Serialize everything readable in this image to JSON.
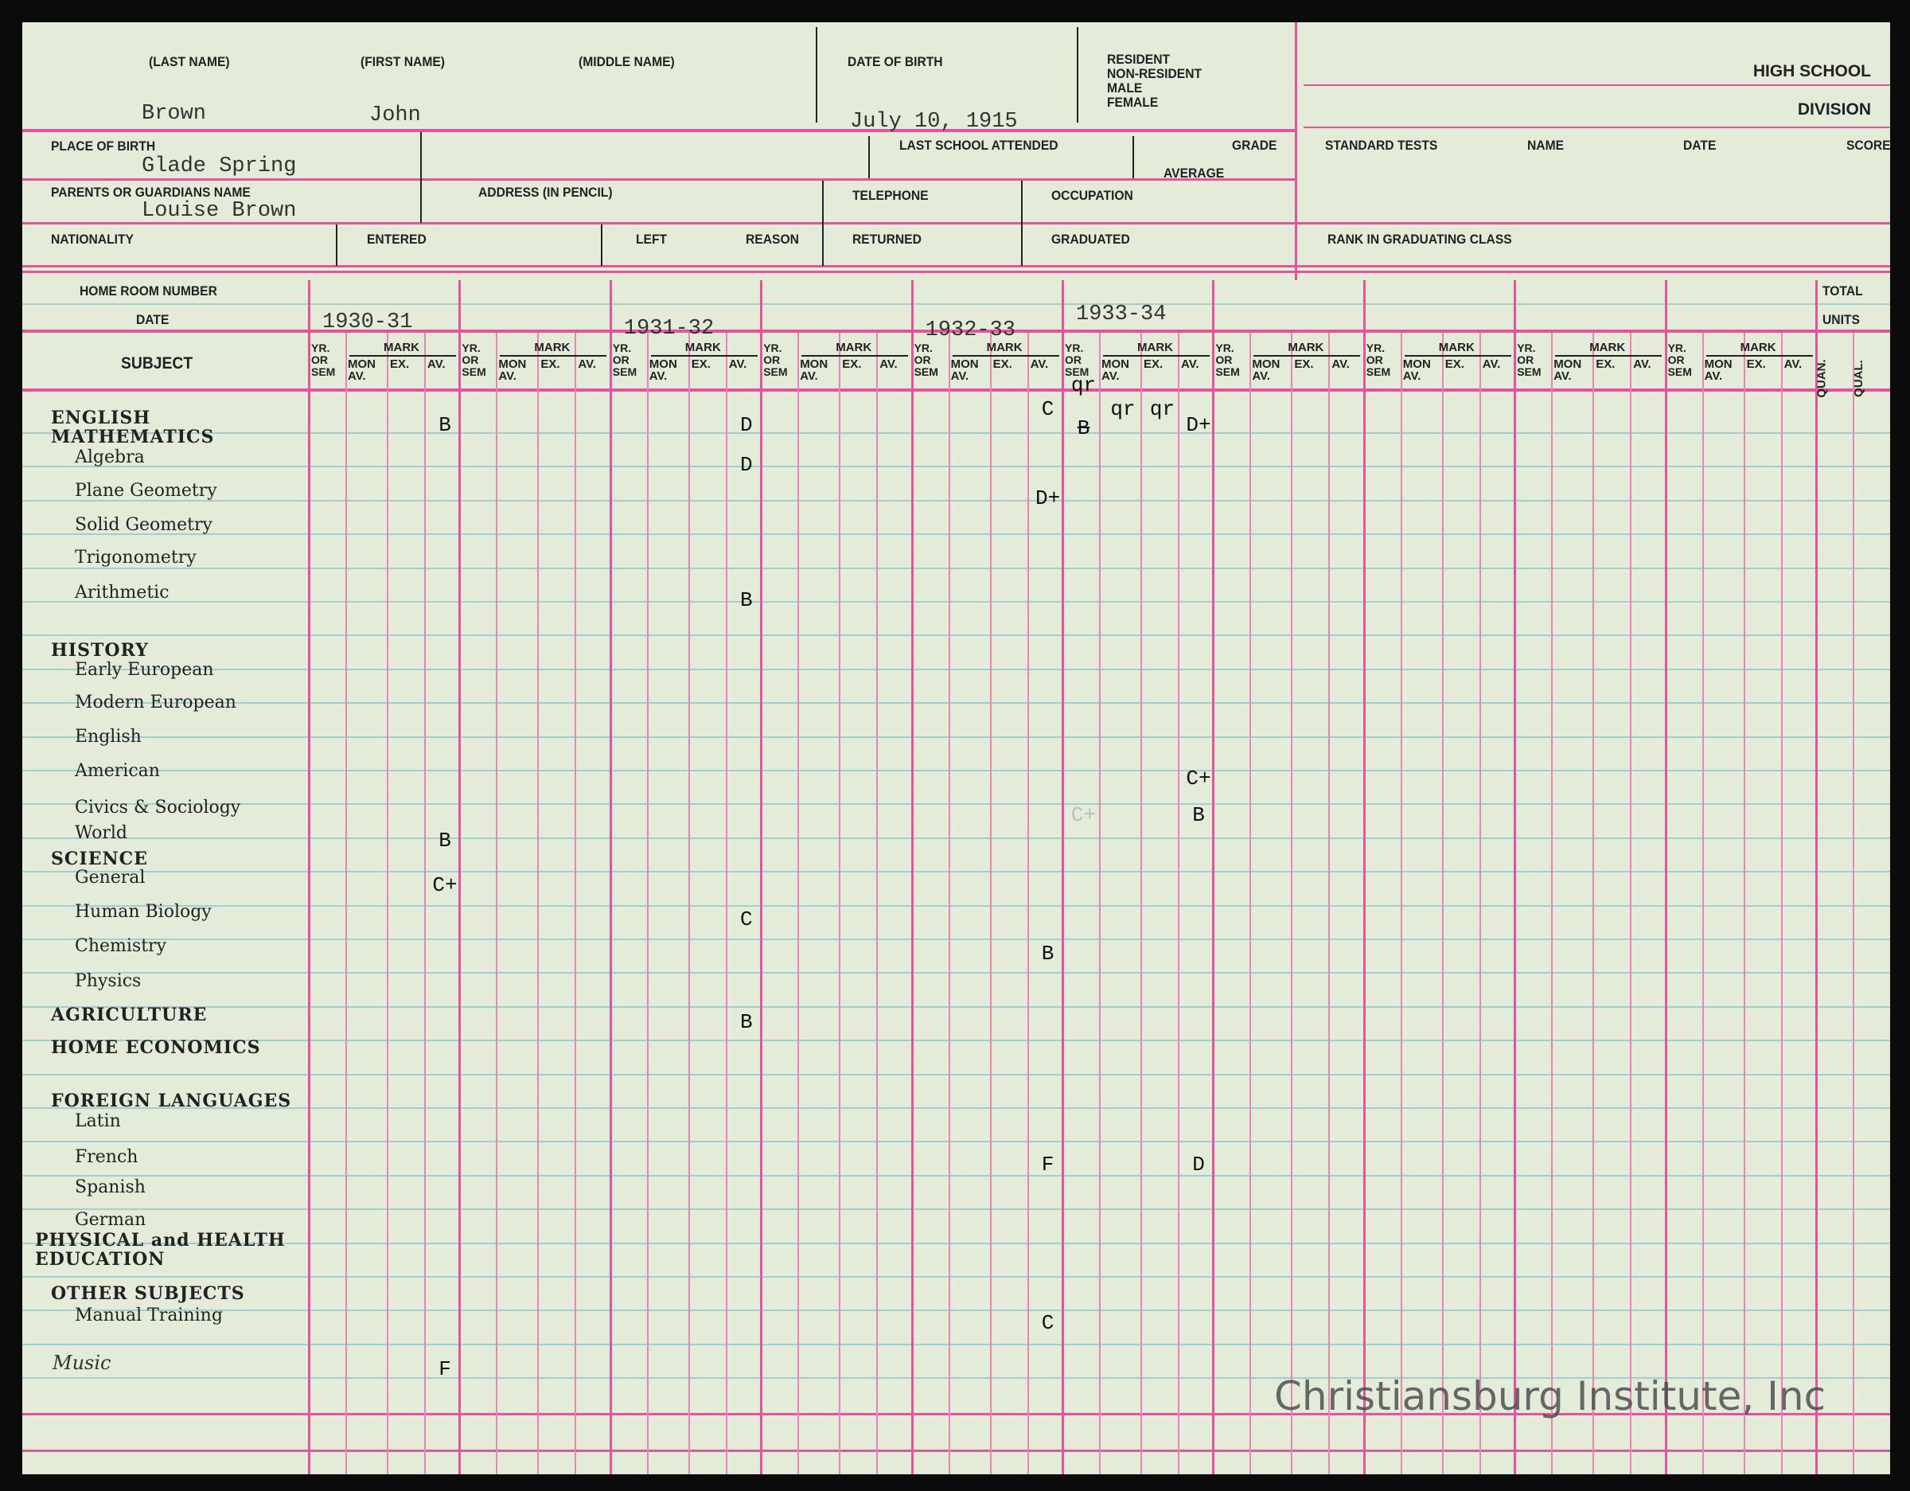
{
  "header": {
    "last_name_label": "(LAST NAME)",
    "first_name_label": "(FIRST NAME)",
    "middle_name_label": "(MIDDLE NAME)",
    "dob_label": "DATE OF BIRTH",
    "resident_options": [
      "RESIDENT",
      "NON-RESIDENT",
      "MALE",
      "FEMALE"
    ],
    "school_title": "HIGH SCHOOL",
    "division_label": "DIVISION",
    "last_name": "Brown",
    "first_name": "John",
    "date_of_birth": "July 10, 1915",
    "place_of_birth_label": "PLACE OF BIRTH",
    "place_of_birth": "Glade Spring",
    "last_school_label": "LAST SCHOOL ATTENDED",
    "grade_label": "GRADE",
    "average_label": "AVERAGE",
    "parents_label": "PARENTS OR GUARDIANS NAME",
    "parents": "Louise Brown",
    "address_label": "ADDRESS (IN PENCIL)",
    "telephone_label": "TELEPHONE",
    "occupation_label": "OCCUPATION",
    "nationality_label": "NATIONALITY",
    "entered_label": "ENTERED",
    "left_label": "LEFT",
    "reason_label": "REASON",
    "returned_label": "RETURNED",
    "graduated_label": "GRADUATED",
    "standard_tests_label": "STANDARD TESTS",
    "name_label": "NAME",
    "date_label": "DATE",
    "score_label": "SCORE",
    "rank_label": "RANK IN GRADUATING CLASS"
  },
  "grid": {
    "home_room_label": "HOME ROOM NUMBER",
    "date_label": "DATE",
    "subject_label": "SUBJECT",
    "total_label": "TOTAL",
    "units_label": "UNITS",
    "quan_label": "QUAN.",
    "qual_label": "QUAL.",
    "column_headers": {
      "yr": "YR. OR SEM",
      "mark": "MARK",
      "mon": "MON AV.",
      "ex": "EX.",
      "av": "AV."
    },
    "years": [
      "1930-31",
      "",
      "1931-32",
      "",
      "1932-33",
      "1933-34",
      "",
      "",
      "",
      ""
    ]
  },
  "subjects": [
    {
      "name": "ENGLISH",
      "category": true
    },
    {
      "name": "MATHEMATICS",
      "category": true
    },
    {
      "name": "Algebra"
    },
    {
      "name": "Plane Geometry"
    },
    {
      "name": "Solid Geometry"
    },
    {
      "name": "Trigonometry"
    },
    {
      "name": "Arithmetic"
    },
    {
      "name": "HISTORY",
      "category": true
    },
    {
      "name": "Early European"
    },
    {
      "name": "Modern European"
    },
    {
      "name": "English"
    },
    {
      "name": "American"
    },
    {
      "name": "Civics  & Sociology"
    },
    {
      "name": "World"
    },
    {
      "name": "SCIENCE",
      "category": true
    },
    {
      "name": "General"
    },
    {
      "name": "Human Biology"
    },
    {
      "name": "Chemistry"
    },
    {
      "name": "Physics"
    },
    {
      "name": "AGRICULTURE",
      "category": true
    },
    {
      "name": "HOME ECONOMICS",
      "category": true
    },
    {
      "name": "FOREIGN LANGUAGES",
      "category": true
    },
    {
      "name": "Latin"
    },
    {
      "name": "French"
    },
    {
      "name": "Spanish"
    },
    {
      "name": "German"
    },
    {
      "name": "PHYSICAL and HEALTH",
      "category": true
    },
    {
      "name": "EDUCATION",
      "category": true
    },
    {
      "name": "OTHER SUBJECTS",
      "category": true
    },
    {
      "name": "Manual Training"
    },
    {
      "name": "Music",
      "handwritten": true
    }
  ],
  "grades": [
    {
      "subject": "ENGLISH",
      "year": "1930-31",
      "column": "av",
      "mark": "B"
    },
    {
      "subject": "ENGLISH",
      "year": "1931-32",
      "column": "av",
      "mark": "D"
    },
    {
      "subject": "ENGLISH",
      "year": "1932-33",
      "column": "av",
      "mark": "C"
    },
    {
      "subject": "ENGLISH",
      "year": "1933-34",
      "column": "yr",
      "mark": "qr"
    },
    {
      "subject": "ENGLISH",
      "year": "1933-34",
      "column": "yr",
      "mark": "B",
      "struck": true
    },
    {
      "subject": "ENGLISH",
      "year": "1933-34",
      "column": "mon",
      "mark": "qr"
    },
    {
      "subject": "ENGLISH",
      "year": "1933-34",
      "column": "ex",
      "mark": "qr"
    },
    {
      "subject": "ENGLISH",
      "year": "1933-34",
      "column": "av",
      "mark": "D+"
    },
    {
      "subject": "Algebra",
      "year": "1931-32",
      "column": "av",
      "mark": "D"
    },
    {
      "subject": "Plane Geometry",
      "year": "1932-33",
      "column": "av",
      "mark": "D+"
    },
    {
      "subject": "Arithmetic",
      "year": "1931-32",
      "column": "av",
      "mark": "B"
    },
    {
      "subject": "American",
      "year": "1933-34",
      "column": "av",
      "mark": "C+"
    },
    {
      "subject": "Civics  & Sociology",
      "year": "1933-34",
      "column": "yr",
      "mark": "C+",
      "faint": true
    },
    {
      "subject": "Civics  & Sociology",
      "year": "1933-34",
      "column": "av",
      "mark": "B"
    },
    {
      "subject": "World",
      "year": "1930-31",
      "column": "av",
      "mark": "B"
    },
    {
      "subject": "General",
      "year": "1930-31",
      "column": "av",
      "mark": "C+"
    },
    {
      "subject": "Human Biology",
      "year": "1931-32",
      "column": "av",
      "mark": "C"
    },
    {
      "subject": "Chemistry",
      "year": "1932-33",
      "column": "av",
      "mark": "B"
    },
    {
      "subject": "AGRICULTURE",
      "year": "1931-32",
      "column": "av",
      "mark": "B"
    },
    {
      "subject": "French",
      "year": "1932-33",
      "column": "av",
      "mark": "F"
    },
    {
      "subject": "French",
      "year": "1933-34",
      "column": "av",
      "mark": "D"
    },
    {
      "subject": "Manual Training",
      "year": "1932-33",
      "column": "av",
      "mark": "C"
    },
    {
      "subject": "Music",
      "year": "1930-31",
      "column": "av",
      "mark": "F"
    }
  ],
  "watermark": "Christiansburg Institute, Inc",
  "colors": {
    "paper": "#e4ebd9",
    "rule_pink": "#e0559b",
    "rule_cyan": "#9fd0cf"
  }
}
